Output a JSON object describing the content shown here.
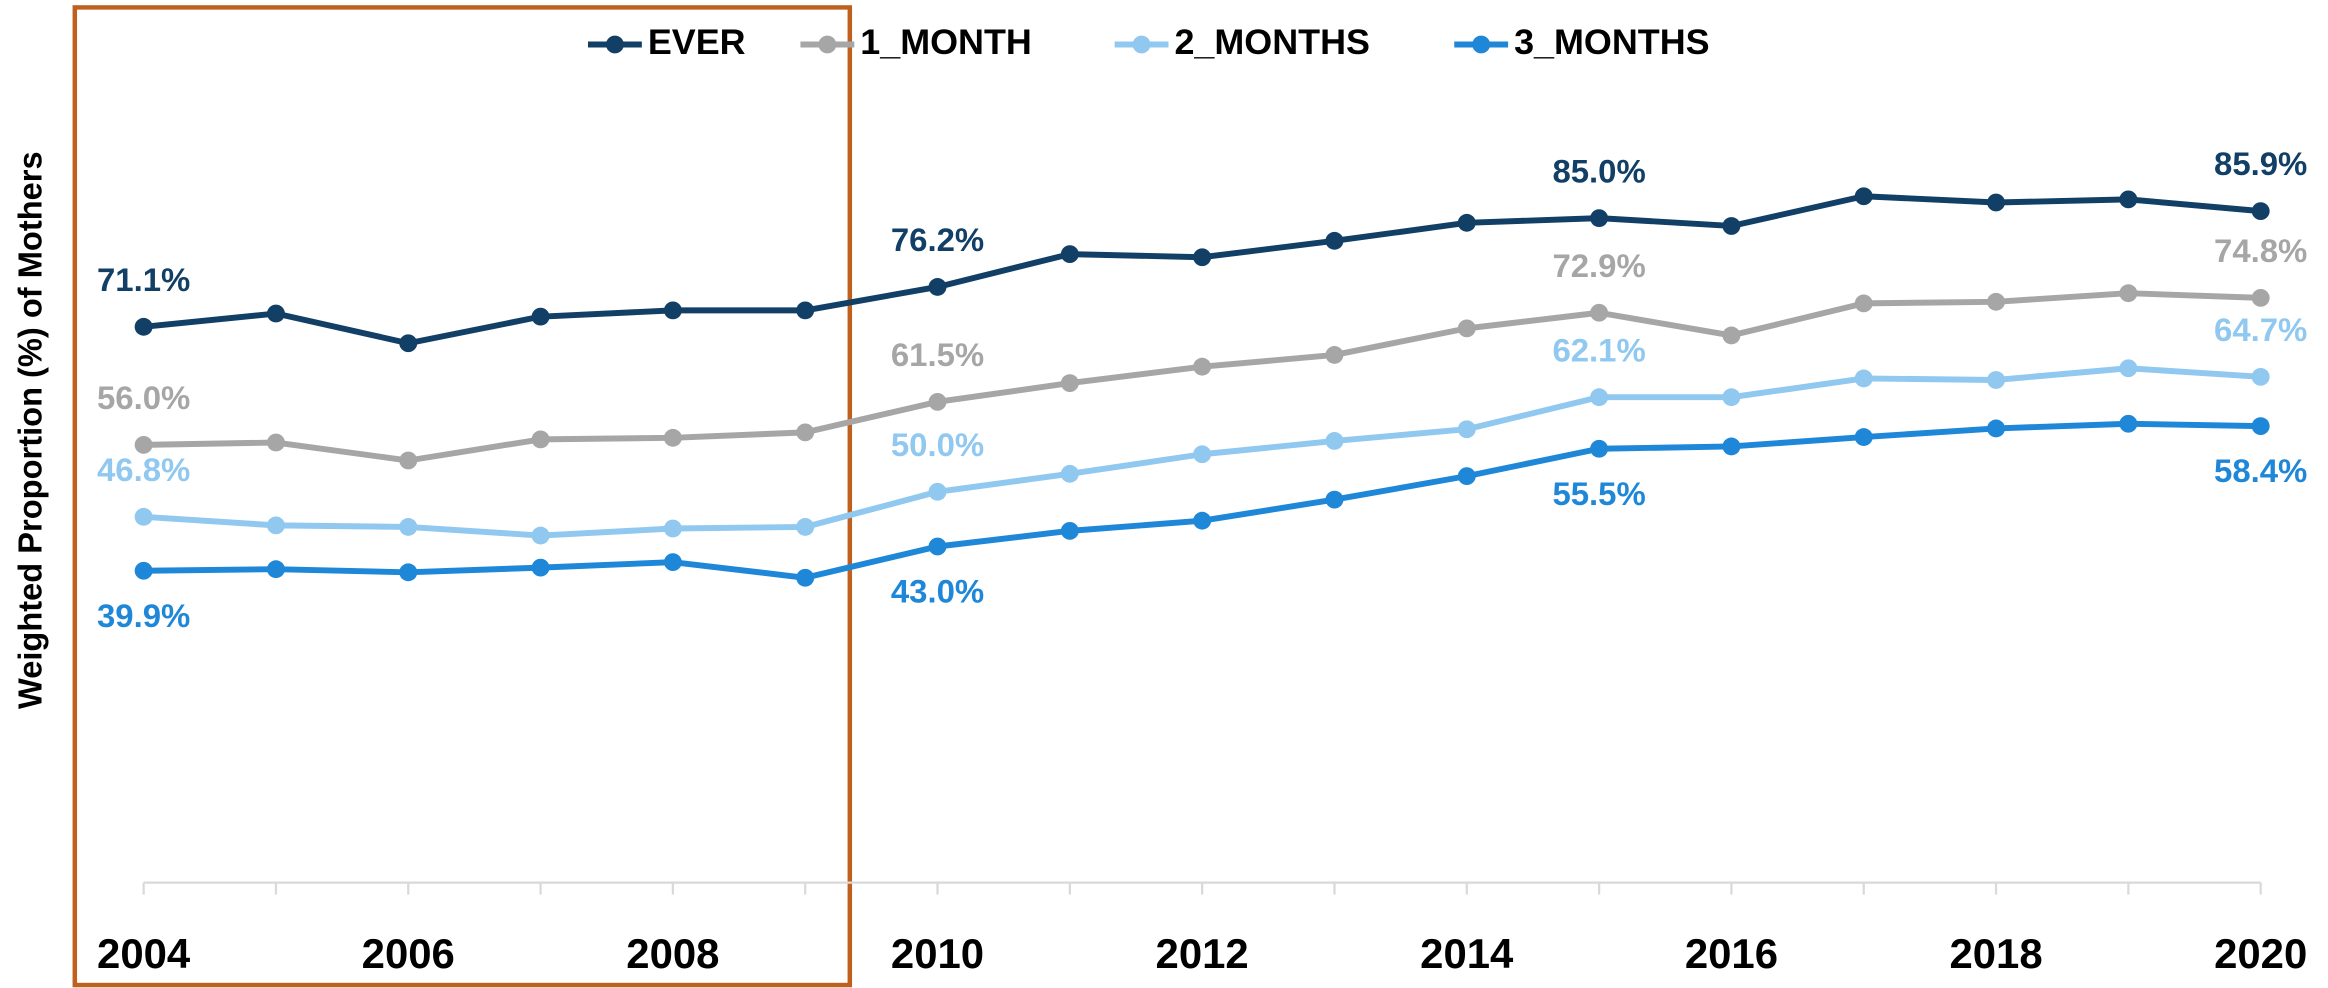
{
  "chart_data": {
    "type": "line",
    "ylabel": "Weighted Proportion (%) of Mothers",
    "x": [
      2004,
      2005,
      2006,
      2007,
      2008,
      2009,
      2010,
      2011,
      2012,
      2013,
      2014,
      2015,
      2016,
      2017,
      2018,
      2019,
      2020
    ],
    "xlim": [
      2004,
      2020
    ],
    "xticks": [
      2004,
      2006,
      2008,
      2010,
      2012,
      2014,
      2016,
      2018,
      2020
    ],
    "ylim": [
      0,
      100
    ],
    "legend": "top",
    "series": [
      {
        "name": "EVER",
        "color": "#123f66",
        "values": [
          71.1,
          72.8,
          69.0,
          72.4,
          73.2,
          73.2,
          76.2,
          80.4,
          80.0,
          82.1,
          84.4,
          85.0,
          84.0,
          87.8,
          87.0,
          87.4,
          85.9
        ],
        "value_labels": [
          "71.1%",
          null,
          null,
          null,
          null,
          null,
          "76.2%",
          null,
          null,
          null,
          null,
          "85.0%",
          null,
          null,
          null,
          null,
          "85.9%"
        ]
      },
      {
        "name": "1_MONTH",
        "color": "#a6a6a6",
        "values": [
          56.0,
          56.3,
          54.0,
          56.7,
          56.9,
          57.6,
          61.5,
          63.9,
          66.0,
          67.5,
          70.9,
          72.9,
          70.0,
          74.1,
          74.3,
          75.4,
          74.8
        ],
        "value_labels": [
          "56.0%",
          null,
          null,
          null,
          null,
          null,
          "61.5%",
          null,
          null,
          null,
          null,
          "72.9%",
          null,
          null,
          null,
          null,
          "74.8%"
        ]
      },
      {
        "name": "2_MONTHS",
        "color": "#90c8f0",
        "values": [
          46.8,
          45.7,
          45.5,
          44.4,
          45.3,
          45.5,
          50.0,
          52.3,
          54.8,
          56.5,
          58.0,
          62.1,
          62.1,
          64.5,
          64.3,
          65.8,
          64.7
        ],
        "value_labels": [
          "46.8%",
          null,
          null,
          null,
          null,
          null,
          "50.0%",
          null,
          null,
          null,
          null,
          "62.1%",
          null,
          null,
          null,
          null,
          "64.7%"
        ]
      },
      {
        "name": "3_MONTHS",
        "color": "#1f87d8",
        "values": [
          39.9,
          40.1,
          39.7,
          40.3,
          41.0,
          39.0,
          43.0,
          45.0,
          46.3,
          49.0,
          52.0,
          55.5,
          55.8,
          57.0,
          58.1,
          58.7,
          58.4
        ],
        "value_labels": [
          "39.9%",
          null,
          null,
          null,
          null,
          null,
          "43.0%",
          null,
          null,
          null,
          null,
          "55.5%",
          null,
          null,
          null,
          null,
          "58.4%"
        ]
      }
    ]
  }
}
